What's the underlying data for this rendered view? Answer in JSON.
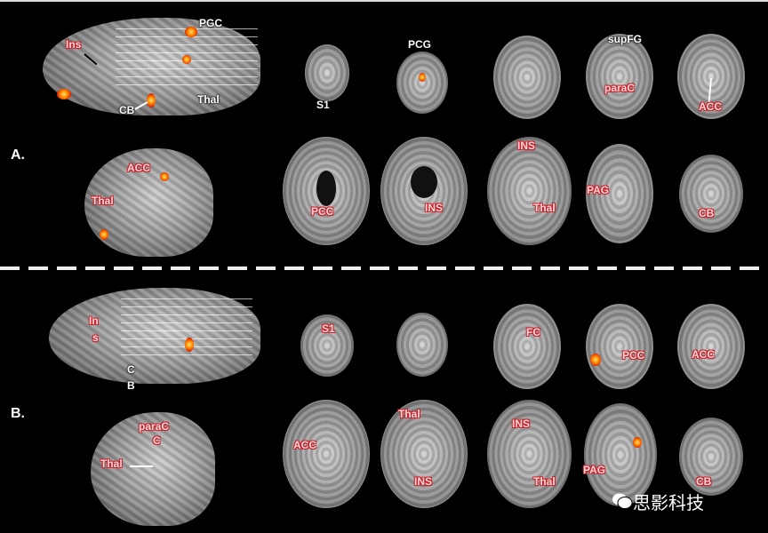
{
  "panels": {
    "a": "A.",
    "b": "B."
  },
  "labels": {
    "a_row1": {
      "ins": "Ins",
      "pgc": "PGC",
      "cb": "CB",
      "thal": "Thal",
      "s1": "S1",
      "pcg": "PCG",
      "supfg": "supFG",
      "parac": "paraC",
      "acc": "ACC"
    },
    "a_row2": {
      "acc": "ACC",
      "thal": "Thal",
      "pcc": "PCC",
      "ins1": "INS",
      "ins2": "INS",
      "thal2": "Thal",
      "pag": "PAG",
      "cb": "CB"
    },
    "b_row1": {
      "in": "In",
      "s": "s",
      "c": "C",
      "b": "B",
      "s1": "S1",
      "fc": "FC",
      "pcc": "PCC",
      "acc": "ACC"
    },
    "b_row2": {
      "parac": "paraC",
      "c": "C",
      "thal": "Thal",
      "acc": "ACC",
      "thal2": "Thal",
      "ins1": "INS",
      "ins2": "INS",
      "thal3": "Thal",
      "pag": "PAG",
      "cb": "CB"
    }
  },
  "watermark": "思影科技",
  "colors": {
    "background": "#000000",
    "activation": "#ff4000",
    "label_outline": "#c8202a"
  }
}
